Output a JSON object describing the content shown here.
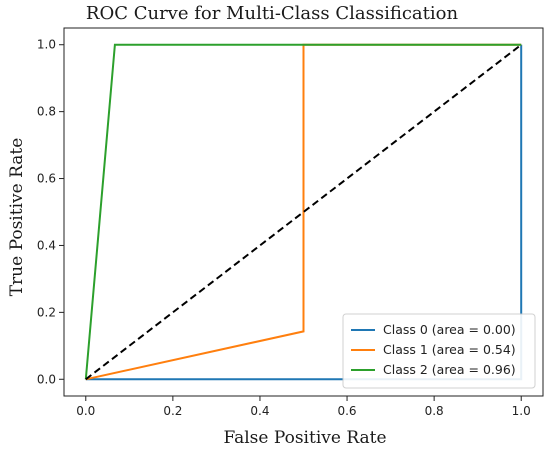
{
  "chart_data": {
    "type": "line",
    "title": "ROC Curve for Multi-Class Classification",
    "xlabel": "False Positive Rate",
    "ylabel": "True Positive Rate",
    "xlim": [
      -0.05,
      1.05
    ],
    "ylim": [
      -0.05,
      1.05
    ],
    "xticks": [
      0.0,
      0.2,
      0.4,
      0.6,
      0.8,
      1.0
    ],
    "yticks": [
      0.0,
      0.2,
      0.4,
      0.6,
      0.8,
      1.0
    ],
    "xtick_labels": [
      "0.0",
      "0.2",
      "0.4",
      "0.6",
      "0.8",
      "1.0"
    ],
    "ytick_labels": [
      "0.0",
      "0.2",
      "0.4",
      "0.6",
      "0.8",
      "1.0"
    ],
    "grid": false,
    "legend_position": "bottom-right",
    "series": [
      {
        "name": "Class 0 (area = 0.00)",
        "color": "#1f77b4",
        "x": [
          0.0,
          1.0,
          1.0
        ],
        "y": [
          0.0,
          0.0,
          1.0
        ]
      },
      {
        "name": "Class 1 (area = 0.54)",
        "color": "#ff7f0e",
        "x": [
          0.0,
          0.5,
          0.5,
          1.0
        ],
        "y": [
          0.0,
          0.143,
          1.0,
          1.0
        ]
      },
      {
        "name": "Class 2 (area = 0.96)",
        "color": "#2ca02c",
        "x": [
          0.0,
          0.067,
          1.0
        ],
        "y": [
          0.0,
          1.0,
          1.0
        ]
      }
    ],
    "reference_line": {
      "style": "dashed",
      "color": "#000000",
      "x": [
        0.0,
        1.0
      ],
      "y": [
        0.0,
        1.0
      ]
    }
  }
}
